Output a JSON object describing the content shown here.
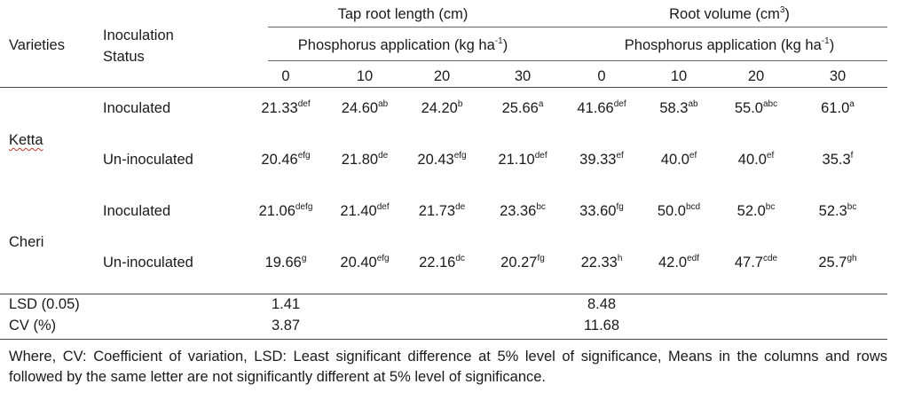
{
  "header": {
    "varieties": "Varieties",
    "inoculation_status_line1": "Inoculation",
    "inoculation_status_line2": "Status",
    "tap_root_length": "Tap root length (cm)",
    "root_volume": "Root volume (cm",
    "root_volume_sup": "3",
    "root_volume_close": ")",
    "phosphorus_application": "Phosphorus application (kg ha",
    "phosphorus_unit_sup": "-1",
    "phosphorus_close": ")",
    "levels": [
      "0",
      "10",
      "20",
      "30",
      "0",
      "10",
      "20",
      "30"
    ]
  },
  "rows": [
    {
      "variety": "Ketta",
      "status": "Inoculated",
      "cells": [
        {
          "v": "21.33",
          "s": "def"
        },
        {
          "v": "24.60",
          "s": "ab"
        },
        {
          "v": "24.20",
          "s": "b"
        },
        {
          "v": "25.66",
          "s": "a"
        },
        {
          "v": "41.66",
          "s": "def"
        },
        {
          "v": "58.3",
          "s": "ab"
        },
        {
          "v": "55.0",
          "s": "abc"
        },
        {
          "v": "61.0",
          "s": "a"
        }
      ]
    },
    {
      "variety": "",
      "status": "Un-inoculated",
      "cells": [
        {
          "v": "20.46",
          "s": "efg"
        },
        {
          "v": "21.80",
          "s": "de"
        },
        {
          "v": "20.43",
          "s": "efg"
        },
        {
          "v": "21.10",
          "s": "def"
        },
        {
          "v": "39.33",
          "s": "ef"
        },
        {
          "v": "40.0",
          "s": "ef"
        },
        {
          "v": "40.0",
          "s": "ef"
        },
        {
          "v": "35.3",
          "s": "f"
        }
      ]
    },
    {
      "variety": "Cheri",
      "status": "Inoculated",
      "cells": [
        {
          "v": "21.06",
          "s": "defg"
        },
        {
          "v": "21.40",
          "s": "def"
        },
        {
          "v": "21.73",
          "s": "de"
        },
        {
          "v": "23.36",
          "s": "bc"
        },
        {
          "v": "33.60",
          "s": "fg"
        },
        {
          "v": "50.0",
          "s": "bcd"
        },
        {
          "v": "52.0",
          "s": "bc"
        },
        {
          "v": "52.3",
          "s": "bc"
        }
      ]
    },
    {
      "variety": "",
      "status": "Un-inoculated",
      "cells": [
        {
          "v": "19.66",
          "s": "g"
        },
        {
          "v": "20.40",
          "s": "efg"
        },
        {
          "v": "22.16",
          "s": "dc"
        },
        {
          "v": "20.27",
          "s": "fg"
        },
        {
          "v": "22.33",
          "s": "h"
        },
        {
          "v": "42.0",
          "s": "edf"
        },
        {
          "v": "47.7",
          "s": "cde"
        },
        {
          "v": "25.7",
          "s": "gh"
        }
      ]
    }
  ],
  "stats": [
    {
      "label": "LSD (0.05)",
      "tap_root": "1.41",
      "root_volume": "8.48"
    },
    {
      "label": "CV (%)",
      "tap_root": "3.87",
      "root_volume": "11.68"
    }
  ],
  "footnote": "Where, CV: Coefficient of variation, LSD: Least significant difference at 5% level of significance, Means in the columns and rows followed by the same letter are not significantly different at 5% level of significance."
}
